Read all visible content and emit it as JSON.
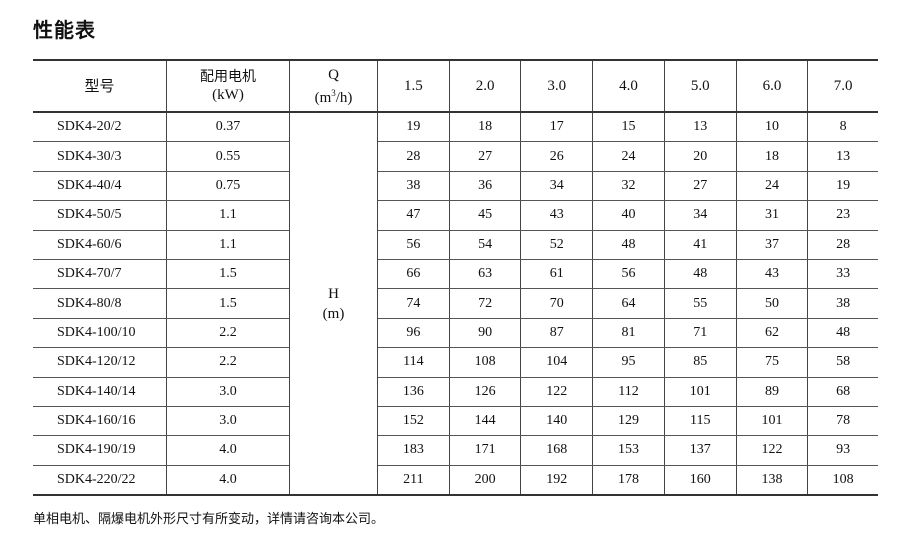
{
  "title": "性能表",
  "header": {
    "model": "型号",
    "motor_line1": "配用电机",
    "motor_line2": "(kW)",
    "q_line1": "Q",
    "q_unit_pre": "(m",
    "q_unit_sup": "3",
    "q_unit_post": "/h)",
    "flows": [
      "1.5",
      "2.0",
      "3.0",
      "4.0",
      "5.0",
      "6.0",
      "7.0"
    ]
  },
  "h_label_line1": "H",
  "h_label_line2": "(m)",
  "rows": [
    {
      "model": "SDK4-20/2",
      "kw": "0.37",
      "h": [
        "19",
        "18",
        "17",
        "15",
        "13",
        "10",
        "8"
      ]
    },
    {
      "model": "SDK4-30/3",
      "kw": "0.55",
      "h": [
        "28",
        "27",
        "26",
        "24",
        "20",
        "18",
        "13"
      ]
    },
    {
      "model": "SDK4-40/4",
      "kw": "0.75",
      "h": [
        "38",
        "36",
        "34",
        "32",
        "27",
        "24",
        "19"
      ]
    },
    {
      "model": "SDK4-50/5",
      "kw": "1.1",
      "h": [
        "47",
        "45",
        "43",
        "40",
        "34",
        "31",
        "23"
      ]
    },
    {
      "model": "SDK4-60/6",
      "kw": "1.1",
      "h": [
        "56",
        "54",
        "52",
        "48",
        "41",
        "37",
        "28"
      ]
    },
    {
      "model": "SDK4-70/7",
      "kw": "1.5",
      "h": [
        "66",
        "63",
        "61",
        "56",
        "48",
        "43",
        "33"
      ]
    },
    {
      "model": "SDK4-80/8",
      "kw": "1.5",
      "h": [
        "74",
        "72",
        "70",
        "64",
        "55",
        "50",
        "38"
      ]
    },
    {
      "model": "SDK4-100/10",
      "kw": "2.2",
      "h": [
        "96",
        "90",
        "87",
        "81",
        "71",
        "62",
        "48"
      ]
    },
    {
      "model": "SDK4-120/12",
      "kw": "2.2",
      "h": [
        "114",
        "108",
        "104",
        "95",
        "85",
        "75",
        "58"
      ]
    },
    {
      "model": "SDK4-140/14",
      "kw": "3.0",
      "h": [
        "136",
        "126",
        "122",
        "112",
        "101",
        "89",
        "68"
      ]
    },
    {
      "model": "SDK4-160/16",
      "kw": "3.0",
      "h": [
        "152",
        "144",
        "140",
        "129",
        "115",
        "101",
        "78"
      ]
    },
    {
      "model": "SDK4-190/19",
      "kw": "4.0",
      "h": [
        "183",
        "171",
        "168",
        "153",
        "137",
        "122",
        "93"
      ]
    },
    {
      "model": "SDK4-220/22",
      "kw": "4.0",
      "h": [
        "211",
        "200",
        "192",
        "178",
        "160",
        "138",
        "108"
      ]
    }
  ],
  "note": "单相电机、隔爆电机外形尺寸有所变动，详情请咨询本公司。"
}
